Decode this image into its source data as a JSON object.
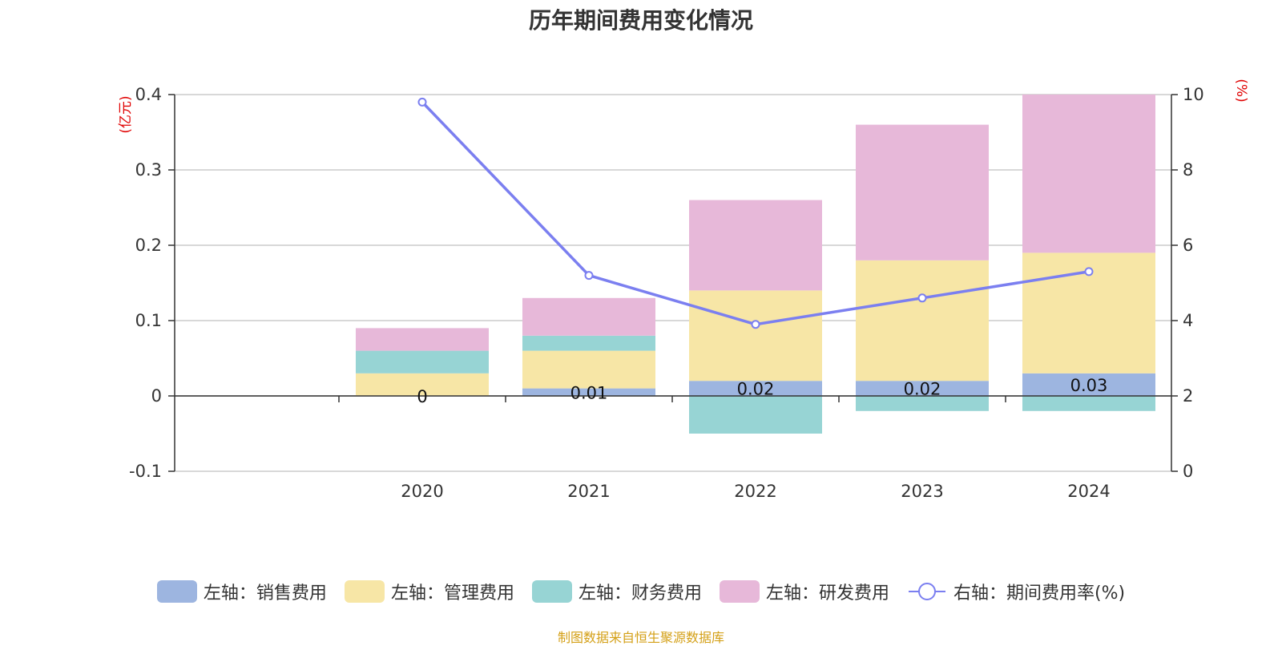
{
  "chart_data": {
    "type": "bar",
    "title": "历年期间费用变化情况",
    "categories": [
      "2020",
      "2021",
      "2022",
      "2023",
      "2024"
    ],
    "left_axis": {
      "unit_label": "(亿元)",
      "ylim": [
        -0.1,
        0.4
      ],
      "ticks": [
        -0.1,
        0,
        0.1,
        0.2,
        0.3,
        0.4
      ],
      "tick_labels": [
        "-0.1",
        "0",
        "0.1",
        "0.2",
        "0.3",
        "0.4"
      ]
    },
    "right_axis": {
      "unit_label": "(%)",
      "ylim": [
        0,
        10
      ],
      "ticks": [
        0,
        2,
        4,
        6,
        8,
        10
      ],
      "tick_labels": [
        "0",
        "2",
        "4",
        "6",
        "8",
        "10"
      ]
    },
    "series": [
      {
        "name": "左轴：销售费用",
        "kind": "bar",
        "axis": "left",
        "color": "#9db5e0",
        "values": [
          0,
          0.01,
          0.02,
          0.02,
          0.03
        ],
        "data_labels": [
          "0",
          "0.01",
          "0.02",
          "0.02",
          "0.03"
        ]
      },
      {
        "name": "左轴：管理费用",
        "kind": "bar",
        "axis": "left",
        "color": "#f7e6a6",
        "values": [
          0.03,
          0.05,
          0.12,
          0.16,
          0.16
        ]
      },
      {
        "name": "左轴：财务费用",
        "kind": "bar",
        "axis": "left",
        "color": "#97d4d4",
        "values": [
          0.03,
          0.02,
          -0.05,
          -0.02,
          -0.02
        ]
      },
      {
        "name": "左轴：研发费用",
        "kind": "bar",
        "axis": "left",
        "color": "#e7b8d9",
        "values": [
          0.03,
          0.05,
          0.12,
          0.18,
          0.21
        ]
      },
      {
        "name": "右轴：期间费用率(%)",
        "kind": "line",
        "axis": "right",
        "color": "#7b7ff0",
        "values": [
          9.8,
          5.2,
          3.9,
          4.6,
          5.3
        ]
      }
    ],
    "source_note": "制图数据来自恒生聚源数据库",
    "source_color": "#d4a017",
    "legend_position": "bottom-center"
  }
}
